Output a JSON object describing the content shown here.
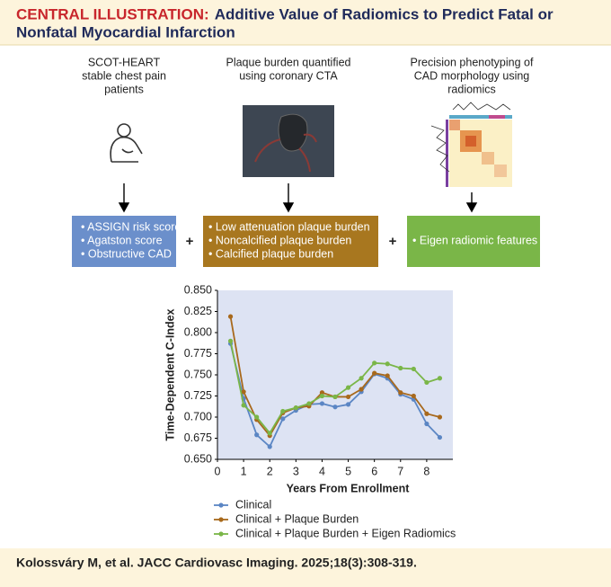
{
  "header": {
    "label": "CENTRAL ILLUSTRATION:",
    "title_lines": [
      "Additive Value of Radiomics to Predict Fatal or",
      "Nonfatal Myocardial Infarction"
    ]
  },
  "columns": [
    {
      "caption_lines": [
        "SCOT-HEART",
        "stable chest pain",
        "patients"
      ],
      "items": [
        "• ASSIGN risk score",
        "• Agatston score",
        "• Obstructive CAD"
      ]
    },
    {
      "caption_lines": [
        "Plaque burden quantified",
        "using coronary CTA"
      ],
      "items": [
        "• Low attenuation plaque burden",
        "• Noncalcified plaque burden",
        "• Calcified plaque burden"
      ]
    },
    {
      "caption_lines": [
        "Precision phenotyping of",
        "CAD morphology using",
        "radiomics"
      ],
      "items": [
        "• Eigen radiomic features"
      ]
    }
  ],
  "operators": [
    "+",
    "+"
  ],
  "chart_data": {
    "type": "line",
    "ylabel": "Time-Dependent C-Index",
    "xlabel": "Years From Enrollment",
    "x": [
      0.5,
      1,
      1.5,
      2,
      2.5,
      3,
      3.5,
      4,
      4.5,
      5,
      5.5,
      6,
      6.5,
      7,
      7.5,
      8,
      8.5
    ],
    "series": [
      {
        "name": "Clinical",
        "color": "#5b86c4",
        "values": [
          0.787,
          0.722,
          0.679,
          0.665,
          0.698,
          0.708,
          0.715,
          0.716,
          0.712,
          0.715,
          0.73,
          0.751,
          0.746,
          0.727,
          0.721,
          0.692,
          0.676
        ]
      },
      {
        "name": "Clinical + Plaque Burden",
        "color": "#a8691c",
        "values": [
          0.819,
          0.73,
          0.697,
          0.678,
          0.705,
          0.711,
          0.713,
          0.729,
          0.724,
          0.724,
          0.733,
          0.752,
          0.749,
          0.729,
          0.725,
          0.704,
          0.7
        ]
      },
      {
        "name": "Clinical + Plaque Burden + Eigen Radiomics",
        "color": "#7ab648",
        "values": [
          0.79,
          0.714,
          0.7,
          0.681,
          0.707,
          0.711,
          0.716,
          0.725,
          0.724,
          0.735,
          0.746,
          0.764,
          0.763,
          0.758,
          0.757,
          0.741,
          0.746
        ]
      }
    ],
    "xlim": [
      0,
      9
    ],
    "xticks": [
      0,
      1,
      2,
      3,
      4,
      5,
      6,
      7,
      8
    ],
    "ylim": [
      0.65,
      0.85
    ],
    "yticks": [
      {
        "value": 0.65,
        "label": "0.650"
      },
      {
        "value": 0.675,
        "label": "0.675"
      },
      {
        "value": 0.7,
        "label": "0.700"
      },
      {
        "value": 0.725,
        "label": "0.725"
      },
      {
        "value": 0.75,
        "label": "0.750"
      },
      {
        "value": 0.775,
        "label": "0.775"
      },
      {
        "value": 0.8,
        "label": "0.800"
      },
      {
        "value": 0.825,
        "label": "0.825"
      },
      {
        "value": 0.85,
        "label": "0.850"
      }
    ],
    "grid": false,
    "plot_background": "#dde3f3"
  },
  "citation": "Kolossváry M, et al. JACC Cardiovasc Imaging. 2025;18(3):308-319."
}
